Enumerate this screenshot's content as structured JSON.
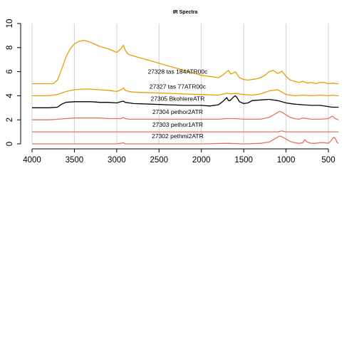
{
  "chart_data": {
    "type": "line",
    "title": "IR Spectra",
    "xlabel": "",
    "ylabel": "",
    "xlim": [
      4000,
      380
    ],
    "x_reversed": true,
    "ylim": [
      0,
      10
    ],
    "grid": "vertical",
    "x_ticks": [
      4000,
      3500,
      3000,
      2500,
      2000,
      1500,
      1000,
      500
    ],
    "y_ticks": [
      0,
      2,
      4,
      6,
      8,
      10
    ],
    "series": [
      {
        "name": "27328 tas 184ATR00c",
        "color": "#e69f00",
        "label_x": 2280,
        "label_y": 6.0,
        "x": [
          4000,
          3750,
          3700,
          3650,
          3600,
          3550,
          3500,
          3450,
          3400,
          3350,
          3300,
          3200,
          3100,
          3000,
          2950,
          2920,
          2900,
          2870,
          2850,
          2800,
          2700,
          2600,
          2500,
          2400,
          2300,
          2200,
          2100,
          2000,
          1900,
          1800,
          1750,
          1700,
          1680,
          1650,
          1620,
          1600,
          1580,
          1550,
          1500,
          1450,
          1400,
          1350,
          1300,
          1250,
          1200,
          1150,
          1100,
          1080,
          1050,
          1020,
          1000,
          950,
          900,
          850,
          800,
          750,
          700,
          650,
          600,
          550,
          500,
          450,
          400,
          380
        ],
        "y": [
          5.0,
          5.0,
          5.3,
          6.2,
          7.2,
          7.9,
          8.3,
          8.5,
          8.6,
          8.55,
          8.4,
          8.1,
          7.9,
          7.6,
          7.9,
          8.2,
          7.8,
          7.5,
          7.4,
          7.3,
          7.1,
          6.9,
          6.7,
          6.5,
          6.3,
          6.1,
          5.9,
          5.7,
          5.6,
          5.5,
          5.7,
          6.0,
          6.1,
          5.8,
          5.9,
          6.0,
          5.8,
          5.5,
          5.35,
          5.3,
          5.35,
          5.4,
          5.5,
          5.7,
          6.0,
          6.1,
          5.85,
          5.9,
          6.05,
          5.8,
          5.6,
          5.3,
          5.2,
          5.1,
          5.2,
          5.05,
          5.1,
          5.0,
          5.1,
          5.1,
          5.0,
          5.05,
          5.0,
          5.0
        ]
      },
      {
        "name": "27327 tas 77ATR00c",
        "color": "#e69f00",
        "label_x": 2280,
        "label_y": 4.75,
        "x": [
          4000,
          3800,
          3700,
          3600,
          3500,
          3400,
          3300,
          3200,
          3100,
          3000,
          2950,
          2920,
          2900,
          2850,
          2800,
          2600,
          2400,
          2200,
          2000,
          1800,
          1700,
          1650,
          1600,
          1500,
          1400,
          1300,
          1200,
          1100,
          1050,
          1000,
          900,
          800,
          700,
          600,
          500,
          450,
          400,
          380
        ],
        "y": [
          4.0,
          4.0,
          4.1,
          4.35,
          4.5,
          4.55,
          4.55,
          4.5,
          4.45,
          4.35,
          4.5,
          4.65,
          4.45,
          4.35,
          4.3,
          4.25,
          4.2,
          4.15,
          4.1,
          4.05,
          4.2,
          4.15,
          4.2,
          4.1,
          4.05,
          4.15,
          4.4,
          4.5,
          4.3,
          4.1,
          4.0,
          4.05,
          4.0,
          4.05,
          4.0,
          4.05,
          4.0,
          4.0
        ]
      },
      {
        "name": "27305 BkohlereATR",
        "color": "#000000",
        "label_x": 2280,
        "label_y": 3.75,
        "x": [
          4000,
          3800,
          3700,
          3650,
          3600,
          3500,
          3400,
          3300,
          3200,
          3100,
          3000,
          2950,
          2920,
          2900,
          2850,
          2800,
          2600,
          2400,
          2200,
          2000,
          1900,
          1800,
          1750,
          1720,
          1700,
          1680,
          1660,
          1620,
          1600,
          1580,
          1550,
          1500,
          1450,
          1400,
          1300,
          1200,
          1100,
          1050,
          1000,
          900,
          800,
          700,
          600,
          500,
          450,
          400,
          380
        ],
        "y": [
          3.0,
          3.0,
          3.05,
          3.3,
          3.45,
          3.5,
          3.5,
          3.5,
          3.45,
          3.45,
          3.4,
          3.5,
          3.55,
          3.45,
          3.4,
          3.35,
          3.3,
          3.25,
          3.2,
          3.2,
          3.15,
          3.25,
          3.5,
          3.7,
          3.85,
          3.6,
          3.6,
          3.9,
          4.0,
          3.85,
          3.5,
          3.35,
          3.4,
          3.6,
          3.65,
          3.7,
          3.6,
          3.5,
          3.4,
          3.3,
          3.25,
          3.2,
          3.2,
          3.1,
          3.05,
          3.05,
          3.05
        ]
      },
      {
        "name": "27304 pethor2ATR",
        "color": "#e8735a",
        "label_x": 2280,
        "label_y": 2.65,
        "x": [
          4000,
          3800,
          3700,
          3600,
          3500,
          3400,
          3300,
          3200,
          3100,
          3000,
          2950,
          2920,
          2900,
          2850,
          2700,
          2500,
          2300,
          2100,
          1900,
          1800,
          1700,
          1600,
          1500,
          1400,
          1300,
          1200,
          1150,
          1100,
          1080,
          1050,
          1000,
          950,
          900,
          850,
          800,
          700,
          600,
          500,
          470,
          450,
          420,
          400,
          380
        ],
        "y": [
          2.0,
          2.0,
          2.05,
          2.1,
          2.15,
          2.15,
          2.15,
          2.15,
          2.1,
          2.1,
          2.1,
          2.2,
          2.1,
          2.05,
          2.05,
          2.05,
          2.05,
          2.05,
          2.05,
          2.05,
          2.1,
          2.1,
          2.05,
          2.05,
          2.05,
          2.2,
          2.4,
          2.6,
          2.7,
          2.65,
          2.4,
          2.2,
          2.1,
          2.05,
          2.15,
          2.05,
          2.05,
          2.1,
          2.25,
          2.3,
          2.1,
          2.05,
          2.0
        ]
      },
      {
        "name": "27303 pethor1ATR",
        "color": "#e8735a",
        "label_x": 2280,
        "label_y": 1.6,
        "x": [
          4000,
          3000,
          2000,
          1500,
          1100,
          1050,
          1000,
          500,
          380
        ],
        "y": [
          1.0,
          1.0,
          1.0,
          1.0,
          1.0,
          1.07,
          1.0,
          1.0,
          1.0
        ]
      },
      {
        "name": "27302 pethmi2ATR",
        "color": "#e8735a",
        "label_x": 2280,
        "label_y": 0.65,
        "x": [
          4000,
          3600,
          3000,
          2950,
          2920,
          2900,
          2500,
          2000,
          1700,
          1500,
          1300,
          1200,
          1150,
          1100,
          1080,
          1050,
          1000,
          950,
          900,
          850,
          800,
          780,
          750,
          700,
          650,
          600,
          550,
          500,
          470,
          450,
          430,
          410,
          400,
          380
        ],
        "y": [
          0.0,
          0.0,
          0.0,
          0.05,
          0.1,
          0.0,
          0.0,
          0.0,
          0.05,
          0.0,
          0.05,
          0.15,
          0.35,
          0.55,
          0.65,
          0.6,
          0.4,
          0.2,
          0.1,
          0.05,
          0.1,
          0.35,
          0.15,
          0.05,
          0.05,
          0.1,
          0.1,
          0.05,
          0.25,
          0.45,
          0.55,
          0.35,
          0.15,
          0.05
        ]
      }
    ]
  }
}
